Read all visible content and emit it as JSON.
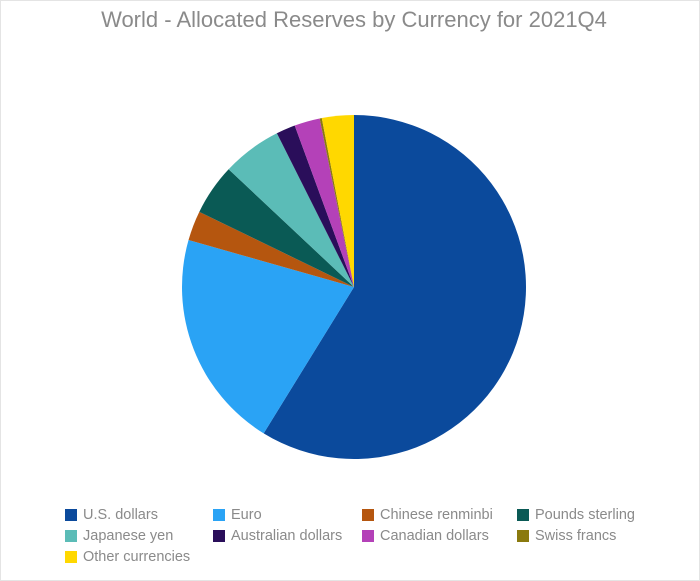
{
  "chart_data": {
    "type": "pie",
    "title": "World - Allocated Reserves by Currency for 2021Q4",
    "categories": [
      "U.S. dollars",
      "Euro",
      "Chinese renminbi",
      "Pounds sterling",
      "Japanese yen",
      "Australian dollars",
      "Canadian dollars",
      "Swiss francs",
      "Other currencies"
    ],
    "values": [
      58.8,
      20.6,
      2.8,
      4.8,
      5.6,
      1.8,
      2.4,
      0.2,
      3.0
    ],
    "colors": [
      "#0b4a9c",
      "#2aa3f5",
      "#b5560f",
      "#0a5a55",
      "#5bbcb7",
      "#2a0e5a",
      "#b441b8",
      "#8a7a0e",
      "#ffd800"
    ],
    "legend": "bottom"
  }
}
